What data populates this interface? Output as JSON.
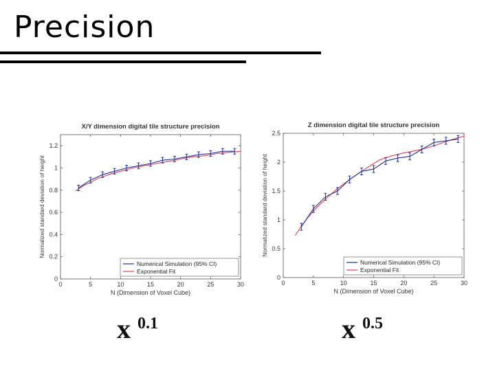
{
  "slide": {
    "title": "Precision",
    "formula_left": {
      "base": "x",
      "exponent": "0.1"
    },
    "formula_right": {
      "base": "x",
      "exponent": "0.5"
    }
  },
  "chart_data": [
    {
      "type": "line",
      "title": "X/Y dimension digital tile structure precision",
      "xlabel": "N (Dimension of Voxel Cube)",
      "ylabel": "Normalized standard deviation of height",
      "xlim": [
        0,
        30
      ],
      "ylim": [
        0,
        1.3
      ],
      "xticks": [
        "0",
        "5",
        "10",
        "15",
        "20",
        "25",
        "30"
      ],
      "yticks": [
        "0",
        "0.2",
        "0.4",
        "0.6",
        "0.8",
        "1",
        "1.2"
      ],
      "grid": false,
      "legend_position": "bottom-right",
      "series": [
        {
          "name": "Numerical Simulation (95% CI)",
          "color": "#1f2f9a",
          "x": [
            3,
            5,
            7,
            9,
            11,
            13,
            15,
            17,
            19,
            21,
            23,
            25,
            27,
            29
          ],
          "y": [
            0.82,
            0.89,
            0.94,
            0.97,
            1.0,
            1.02,
            1.04,
            1.07,
            1.08,
            1.1,
            1.12,
            1.13,
            1.15,
            1.15
          ],
          "error": 0.025
        },
        {
          "name": "Exponential Fit",
          "color": "#e0404a",
          "x": [
            2.5,
            3,
            4,
            5,
            6,
            7,
            8,
            9,
            10,
            12,
            14,
            16,
            18,
            20,
            22,
            24,
            26,
            28,
            30
          ],
          "y": [
            0.795,
            0.81,
            0.845,
            0.87,
            0.9,
            0.92,
            0.94,
            0.955,
            0.97,
            1.0,
            1.02,
            1.04,
            1.06,
            1.08,
            1.1,
            1.11,
            1.13,
            1.14,
            1.15
          ]
        }
      ]
    },
    {
      "type": "line",
      "title": "Z dimension digital tile structure precision",
      "xlabel": "N (Dimension of Voxel Cube)",
      "ylabel": "Normalized standard deviation of height",
      "xlim": [
        0,
        30
      ],
      "ylim": [
        0,
        2.5
      ],
      "xticks": [
        "0",
        "5",
        "10",
        "15",
        "20",
        "25",
        "30"
      ],
      "yticks": [
        "0",
        "0.5",
        "1",
        "1.5",
        "2",
        "2.5"
      ],
      "grid": false,
      "legend_position": "bottom-right",
      "series": [
        {
          "name": "Numerical Simulation (95% CI)",
          "color": "#1f2f9a",
          "x": [
            3,
            5,
            7,
            9,
            11,
            13,
            15,
            17,
            19,
            21,
            23,
            25,
            27,
            29
          ],
          "y": [
            0.88,
            1.19,
            1.4,
            1.5,
            1.7,
            1.84,
            1.88,
            2.02,
            2.07,
            2.1,
            2.22,
            2.34,
            2.37,
            2.4
          ],
          "error": 0.06
        },
        {
          "name": "Exponential Fit",
          "color": "#e0404a",
          "x": [
            2,
            3,
            4,
            5,
            6,
            7,
            8,
            9,
            10,
            12,
            14,
            16,
            18,
            20,
            22,
            24,
            26,
            28,
            30
          ],
          "y": [
            0.73,
            0.89,
            1.03,
            1.15,
            1.26,
            1.36,
            1.45,
            1.54,
            1.62,
            1.77,
            1.91,
            2.04,
            2.11,
            2.16,
            2.2,
            2.25,
            2.32,
            2.39,
            2.45
          ]
        }
      ]
    }
  ]
}
